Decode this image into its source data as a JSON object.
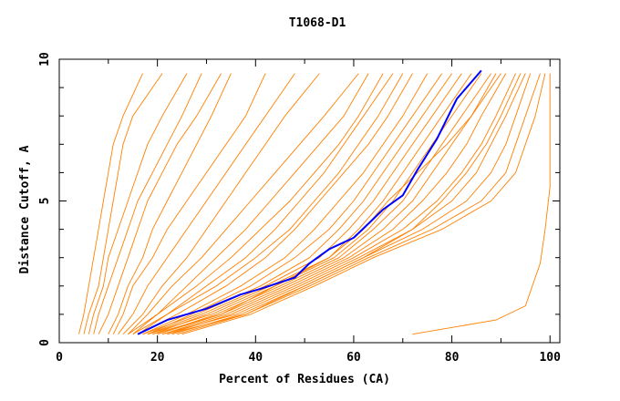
{
  "chart_data": {
    "type": "line",
    "title": "T1068-D1",
    "xlabel": "Percent of Residues (CA)",
    "ylabel": "Distance Cutoff, A",
    "xlim": [
      0,
      102
    ],
    "ylim": [
      0,
      10
    ],
    "x_ticks": [
      0,
      20,
      40,
      60,
      80,
      100
    ],
    "y_ticks": [
      0,
      5,
      10
    ],
    "grid": false,
    "colors": {
      "models": "#ff8000",
      "highlight": "#0000ff"
    },
    "y_levels": [
      0.3,
      1,
      2,
      3,
      4,
      5,
      6,
      7,
      8,
      9.5
    ],
    "model_series_x": [
      [
        4,
        5,
        6,
        7,
        8,
        9,
        10,
        11,
        13,
        17
      ],
      [
        5,
        6,
        8,
        9,
        10,
        11,
        12,
        13,
        15,
        21
      ],
      [
        6,
        7,
        9,
        10,
        12,
        14,
        16,
        18,
        21,
        26
      ],
      [
        7,
        8,
        10,
        12,
        14,
        16,
        19,
        22,
        25,
        29
      ],
      [
        8,
        10,
        12,
        14,
        16,
        18,
        21,
        24,
        28,
        33
      ],
      [
        10,
        12,
        14,
        17,
        19,
        22,
        25,
        28,
        31,
        35
      ],
      [
        11,
        13,
        15,
        19,
        22,
        26,
        30,
        34,
        38,
        42
      ],
      [
        12,
        15,
        18,
        22,
        26,
        30,
        34,
        38,
        42,
        48
      ],
      [
        13,
        17,
        21,
        26,
        30,
        34,
        38,
        42,
        46,
        53
      ],
      [
        14,
        18,
        23,
        29,
        34,
        39,
        44,
        49,
        54,
        61
      ],
      [
        15,
        20,
        26,
        32,
        38,
        43,
        48,
        53,
        58,
        63
      ],
      [
        14,
        20,
        28,
        35,
        41,
        47,
        52,
        57,
        61,
        66
      ],
      [
        16,
        22,
        30,
        38,
        44,
        49,
        54,
        58,
        62,
        68
      ],
      [
        15,
        22,
        32,
        40,
        47,
        52,
        57,
        61,
        65,
        70
      ],
      [
        16,
        24,
        34,
        42,
        48,
        53,
        58,
        63,
        67,
        72
      ],
      [
        17,
        26,
        37,
        46,
        52,
        57,
        62,
        66,
        70,
        75
      ],
      [
        18,
        27,
        39,
        48,
        55,
        60,
        64,
        68,
        72,
        78
      ],
      [
        17,
        28,
        41,
        51,
        57,
        62,
        66,
        70,
        74,
        80
      ],
      [
        18,
        29,
        42,
        53,
        59,
        64,
        68,
        72,
        76,
        82
      ],
      [
        19,
        30,
        43,
        55,
        61,
        66,
        70,
        74,
        78,
        84
      ],
      [
        18,
        31,
        44,
        56,
        63,
        68,
        72,
        76,
        80,
        86
      ],
      [
        20,
        32,
        45,
        57,
        64,
        70,
        74,
        78,
        82,
        88
      ],
      [
        19,
        33,
        46,
        58,
        66,
        72,
        76,
        80,
        84,
        89
      ],
      [
        21,
        34,
        47,
        59,
        68,
        74,
        79,
        83,
        86,
        91
      ],
      [
        22,
        35,
        48,
        60,
        70,
        77,
        82,
        86,
        89,
        93
      ],
      [
        21,
        36,
        49,
        61,
        72,
        80,
        85,
        88,
        91,
        95
      ],
      [
        23,
        37,
        50,
        62,
        74,
        83,
        88,
        91,
        93,
        96
      ],
      [
        24,
        38,
        51,
        63,
        76,
        86,
        91,
        93,
        95,
        98
      ],
      [
        25,
        39,
        52,
        64,
        78,
        88,
        93,
        95,
        97,
        99
      ],
      [
        22,
        38,
        50,
        62,
        72,
        78,
        83,
        87,
        90,
        94
      ],
      [
        20,
        33,
        44,
        55,
        62,
        67,
        73,
        79,
        84,
        90
      ]
    ],
    "outlier_series": [
      [
        72,
        0.3
      ],
      [
        89,
        0.8
      ],
      [
        95,
        1.3
      ],
      [
        98,
        2.8
      ],
      [
        99,
        4
      ],
      [
        100,
        5.5
      ],
      [
        100,
        9.5
      ]
    ],
    "highlight_series": [
      [
        16,
        0.3
      ],
      [
        22,
        0.8
      ],
      [
        30,
        1.2
      ],
      [
        37,
        1.7
      ],
      [
        41,
        1.9
      ],
      [
        48,
        2.3
      ],
      [
        51,
        2.8
      ],
      [
        55,
        3.3
      ],
      [
        60,
        3.7
      ],
      [
        63,
        4.2
      ],
      [
        66,
        4.7
      ],
      [
        70,
        5.2
      ],
      [
        73,
        6.1
      ],
      [
        77,
        7.2
      ],
      [
        81,
        8.6
      ],
      [
        83,
        9.0
      ],
      [
        86,
        9.6
      ]
    ]
  }
}
